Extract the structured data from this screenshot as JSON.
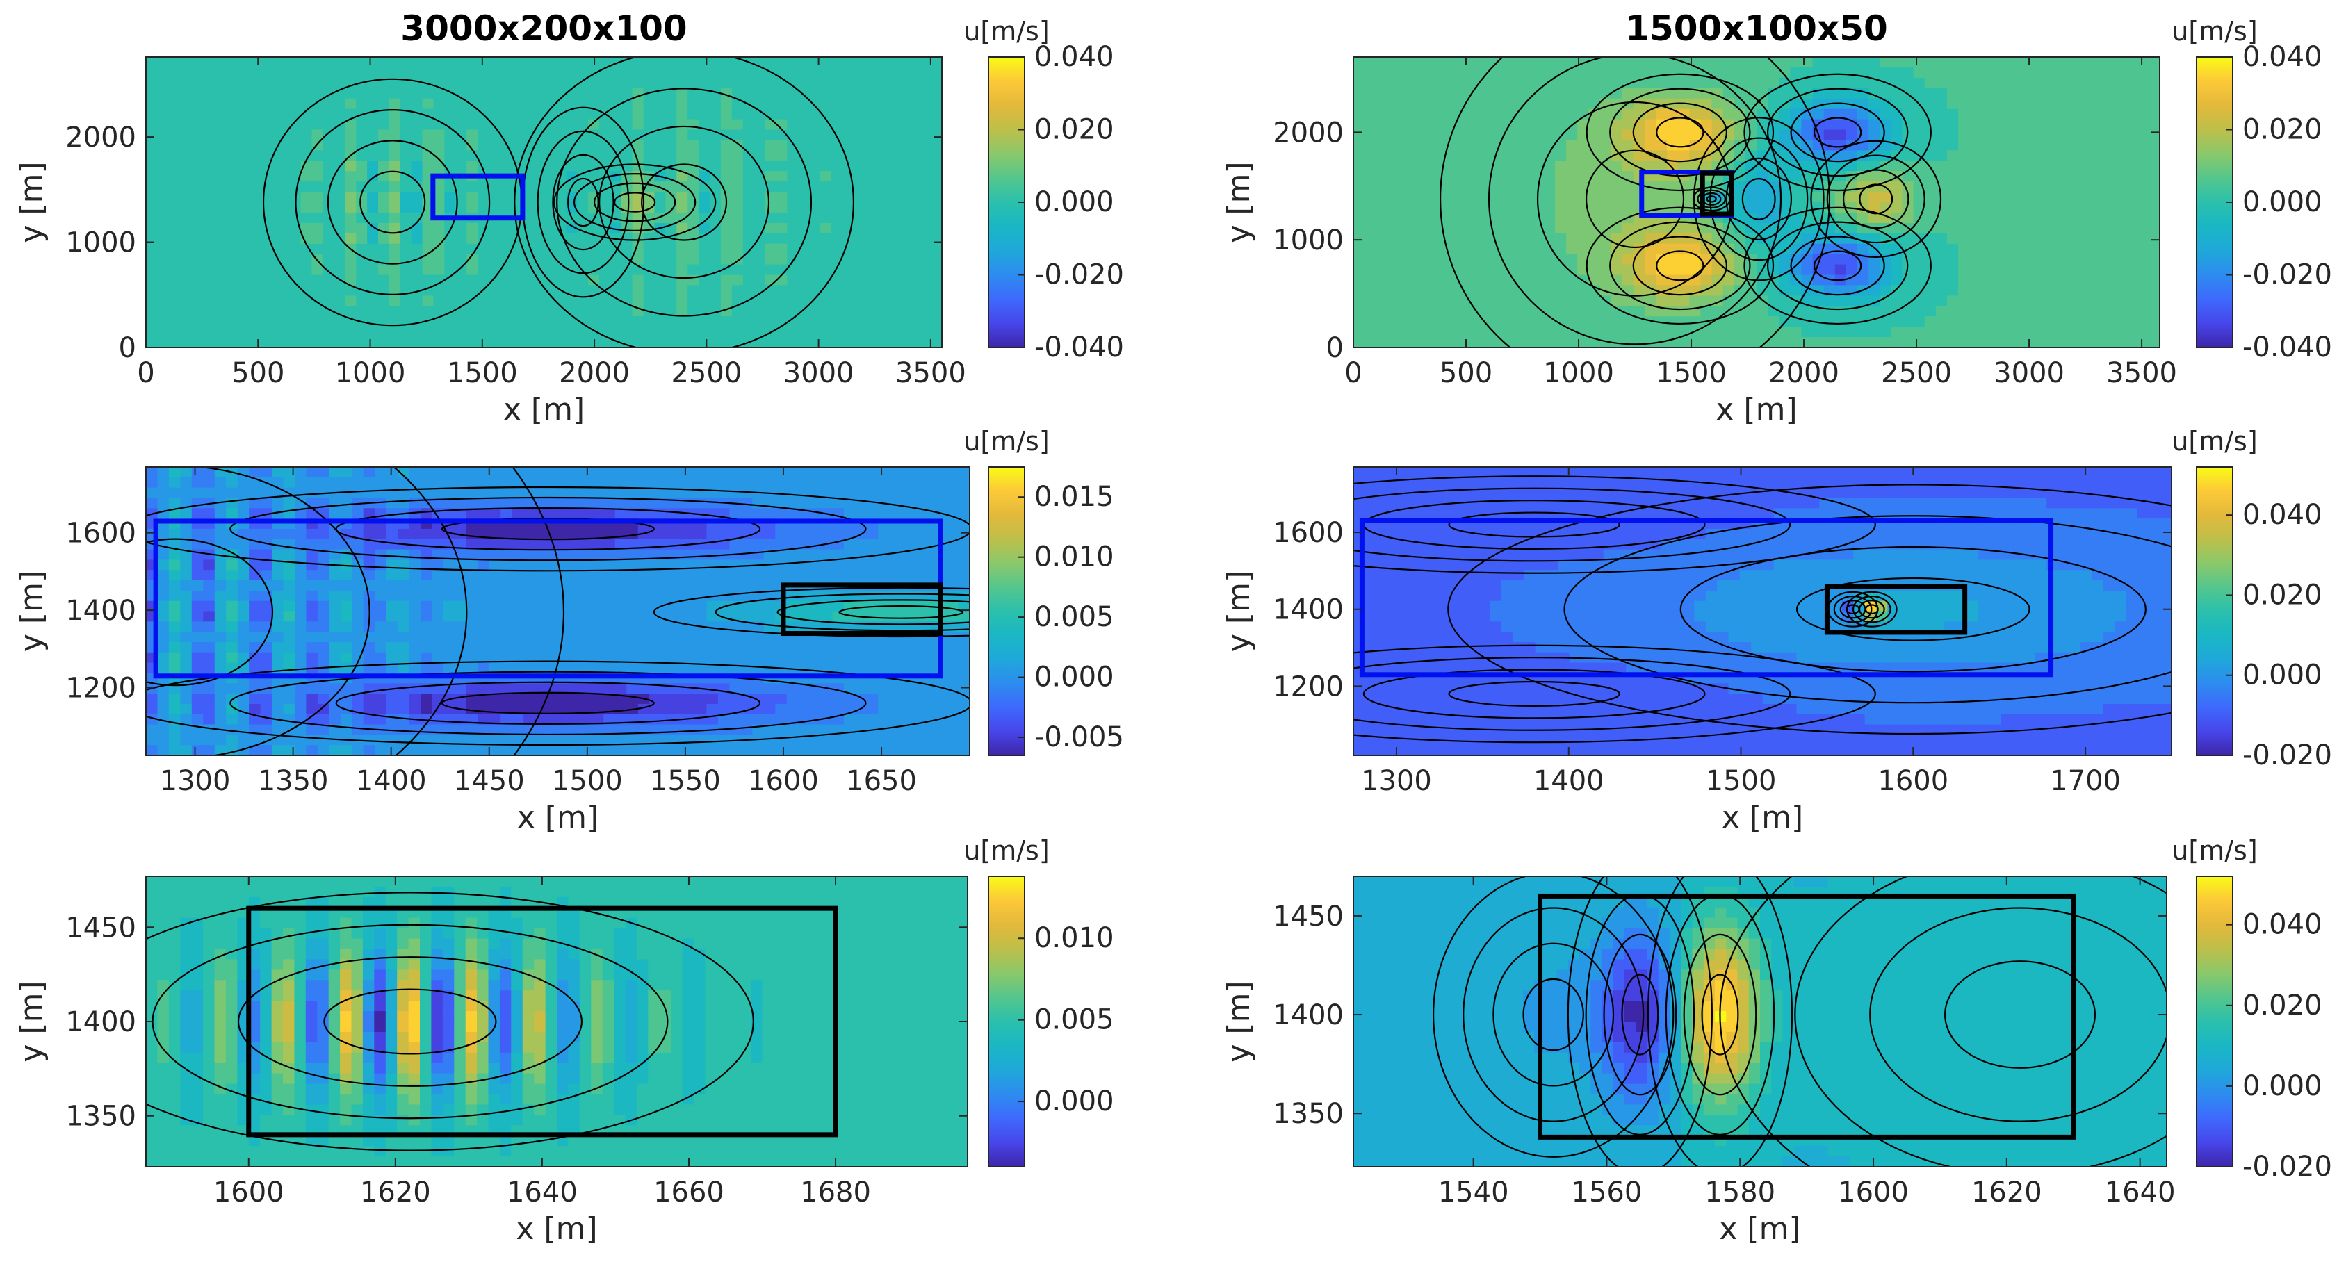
{
  "figure": {
    "cmap": [
      "#3e26a8",
      "#4746eb",
      "#3e69fd",
      "#2d8cef",
      "#1fa8d9",
      "#1ab7c4",
      "#2bc0ac",
      "#54c68d",
      "#8bc86a",
      "#bdbf4a",
      "#e3b93b",
      "#fcc938",
      "#f9fb15"
    ],
    "colors": {
      "blue_box": "#0010ee",
      "black_box": "#000000",
      "contour": "#000000",
      "frame": "#262626",
      "background": "#ffffff"
    }
  },
  "chart_data": [
    {
      "id": "p11",
      "type": "contour",
      "title": "3000x200x100",
      "xlabel": "x [m]",
      "ylabel": "y [m]",
      "xlim": [
        0,
        3550
      ],
      "ylim": [
        0,
        2760
      ],
      "xticks": [
        0,
        500,
        1000,
        1500,
        2000,
        2500,
        3000,
        3500
      ],
      "yticks": [
        0,
        1000,
        2000
      ],
      "xtick_labels": [
        "0",
        "500",
        "1000",
        "1500",
        "2000",
        "2500",
        "3000",
        "3500"
      ],
      "ytick_labels": [
        "0",
        "1000",
        "2000"
      ],
      "colorbar": {
        "label": "u[m/s]",
        "range": [
          -0.04,
          0.04
        ],
        "ticks": [
          0.04,
          0.02,
          0,
          -0.02,
          -0.04
        ],
        "tick_labels": [
          "0.040",
          "0.020",
          "0.000",
          "-0.020",
          "-0.040"
        ]
      },
      "boxes": [
        {
          "color": "blue",
          "x": [
            1280,
            1680
          ],
          "y": [
            1230,
            1630
          ]
        }
      ],
      "field": {
        "base": 0.002,
        "model": "scattered",
        "bumps": [
          {
            "x": 1100,
            "y": 1380,
            "sx": 320,
            "sy": 650,
            "a": 0.014,
            "kx": 0.035,
            "ky": 0.02
          },
          {
            "x": 2400,
            "y": 1380,
            "sx": 420,
            "sy": 800,
            "a": 0.01,
            "kx": 0.03,
            "ky": 0.025
          },
          {
            "x": 2180,
            "y": 1380,
            "sx": 200,
            "sy": 200,
            "a": 0.009,
            "kx": 0,
            "ky": 0
          },
          {
            "x": 1950,
            "y": 1380,
            "sx": 150,
            "sy": 500,
            "a": -0.006,
            "kx": 0,
            "ky": 0
          }
        ]
      }
    },
    {
      "id": "p12",
      "type": "contour",
      "title": "1500x100x50",
      "xlabel": "x [m]",
      "ylabel": "y [m]",
      "xlim": [
        0,
        3580
      ],
      "ylim": [
        0,
        2700
      ],
      "xticks": [
        0,
        500,
        1000,
        1500,
        2000,
        2500,
        3000,
        3500
      ],
      "yticks": [
        0,
        1000,
        2000
      ],
      "xtick_labels": [
        "0",
        "500",
        "1000",
        "1500",
        "2000",
        "2500",
        "3000",
        "3500"
      ],
      "ytick_labels": [
        "0",
        "1000",
        "2000"
      ],
      "colorbar": {
        "label": "u[m/s]",
        "range": [
          -0.04,
          0.04
        ],
        "ticks": [
          0.04,
          0.02,
          0,
          -0.02,
          -0.04
        ],
        "tick_labels": [
          "0.040",
          "0.020",
          "0.000",
          "-0.020",
          "-0.040"
        ]
      },
      "boxes": [
        {
          "color": "blue",
          "x": [
            1280,
            1680
          ],
          "y": [
            1230,
            1630
          ]
        },
        {
          "color": "black",
          "x": [
            1550,
            1680
          ],
          "y": [
            1240,
            1620
          ]
        }
      ],
      "field": {
        "base": 0.003,
        "model": "lobes",
        "bumps": [
          {
            "x": 1450,
            "y": 2000,
            "sx": 230,
            "sy": 300,
            "a": 0.028
          },
          {
            "x": 1450,
            "y": 760,
            "sx": 230,
            "sy": 300,
            "a": 0.028
          },
          {
            "x": 2150,
            "y": 2000,
            "sx": 230,
            "sy": 300,
            "a": -0.036
          },
          {
            "x": 2150,
            "y": 760,
            "sx": 230,
            "sy": 300,
            "a": -0.036
          },
          {
            "x": 1800,
            "y": 1380,
            "sx": 160,
            "sy": 420,
            "a": -0.018
          },
          {
            "x": 2320,
            "y": 1380,
            "sx": 160,
            "sy": 300,
            "a": 0.02
          },
          {
            "x": 1250,
            "y": 1380,
            "sx": 480,
            "sy": 1000,
            "a": 0.01
          },
          {
            "x": 1590,
            "y": 1380,
            "sx": 45,
            "sy": 60,
            "a": -0.02
          }
        ]
      }
    },
    {
      "id": "p21",
      "type": "contour",
      "title": "",
      "xlabel": "x [m]",
      "ylabel": "y [m]",
      "xlim": [
        1275,
        1695
      ],
      "ylim": [
        1025,
        1770
      ],
      "xticks": [
        1300,
        1350,
        1400,
        1450,
        1500,
        1550,
        1600,
        1650
      ],
      "yticks": [
        1200,
        1400,
        1600
      ],
      "xtick_labels": [
        "1300",
        "1350",
        "1400",
        "1450",
        "1500",
        "1550",
        "1600",
        "1650"
      ],
      "ytick_labels": [
        "1200",
        "1400",
        "1600"
      ],
      "colorbar": {
        "label": "u[m/s]",
        "range": [
          -0.0065,
          0.0175
        ],
        "ticks": [
          0.015,
          0.01,
          0.005,
          0,
          -0.005
        ],
        "tick_labels": [
          "0.015",
          "0.010",
          "0.005",
          "0.000",
          "-0.005"
        ]
      },
      "boxes": [
        {
          "color": "blue",
          "x": [
            1280,
            1680
          ],
          "y": [
            1230,
            1630
          ]
        },
        {
          "color": "black",
          "x": [
            1600,
            1680
          ],
          "y": [
            1340,
            1465
          ]
        }
      ],
      "field": {
        "base": 0.0005,
        "model": "wakes",
        "bumps": [
          {
            "x": 1480,
            "y": 1610,
            "sx": 120,
            "sy": 60,
            "a": -0.0075,
            "kx": 0,
            "ky": 0
          },
          {
            "x": 1480,
            "y": 1160,
            "sx": 120,
            "sy": 60,
            "a": -0.0075,
            "kx": 0,
            "ky": 0
          },
          {
            "x": 1660,
            "y": 1395,
            "sx": 70,
            "sy": 35,
            "a": 0.006,
            "kx": 0,
            "ky": 0
          },
          {
            "x": 1290,
            "y": 1395,
            "sx": 110,
            "sy": 420,
            "a": 0.006,
            "kx": 0.22,
            "ky": 0.05
          }
        ]
      }
    },
    {
      "id": "p22",
      "type": "contour",
      "title": "",
      "xlabel": "x [m]",
      "ylabel": "y [m]",
      "xlim": [
        1275,
        1750
      ],
      "ylim": [
        1020,
        1770
      ],
      "xticks": [
        1300,
        1400,
        1500,
        1600,
        1700
      ],
      "yticks": [
        1200,
        1400,
        1600
      ],
      "xtick_labels": [
        "1300",
        "1400",
        "1500",
        "1600",
        "1700"
      ],
      "ytick_labels": [
        "1200",
        "1400",
        "1600"
      ],
      "colorbar": {
        "label": "u[m/s]",
        "range": [
          -0.02,
          0.052
        ],
        "ticks": [
          0.04,
          0.02,
          0,
          -0.02
        ],
        "tick_labels": [
          "0.040",
          "0.020",
          "0.000",
          "-0.020"
        ]
      },
      "boxes": [
        {
          "color": "blue",
          "x": [
            1280,
            1680
          ],
          "y": [
            1230,
            1630
          ]
        },
        {
          "color": "black",
          "x": [
            1550,
            1630
          ],
          "y": [
            1340,
            1460
          ]
        }
      ],
      "field": {
        "base": -0.008,
        "model": "smooth",
        "bumps": [
          {
            "x": 1600,
            "y": 1400,
            "sx": 150,
            "sy": 180,
            "a": 0.012
          },
          {
            "x": 1380,
            "y": 1620,
            "sx": 110,
            "sy": 70,
            "a": -0.003
          },
          {
            "x": 1380,
            "y": 1180,
            "sx": 110,
            "sy": 70,
            "a": -0.003
          },
          {
            "x": 1565,
            "y": 1400,
            "sx": 8,
            "sy": 25,
            "a": -0.02
          },
          {
            "x": 1576,
            "y": 1400,
            "sx": 8,
            "sy": 25,
            "a": 0.05
          }
        ]
      }
    },
    {
      "id": "p31",
      "type": "contour",
      "title": "",
      "xlabel": "x [m]",
      "ylabel": "y [m]",
      "xlim": [
        1586,
        1698
      ],
      "ylim": [
        1323,
        1477
      ],
      "xticks": [
        1600,
        1620,
        1640,
        1660,
        1680
      ],
      "yticks": [
        1350,
        1400,
        1450
      ],
      "xtick_labels": [
        "1600",
        "1620",
        "1640",
        "1660",
        "1680"
      ],
      "ytick_labels": [
        "1350",
        "1400",
        "1450"
      ],
      "colorbar": {
        "label": "u[m/s]",
        "range": [
          -0.004,
          0.0138
        ],
        "ticks": [
          0.01,
          0.005,
          0
        ],
        "tick_labels": [
          "0.010",
          "0.005",
          "0.000"
        ]
      },
      "boxes": [
        {
          "color": "black",
          "x": [
            1600,
            1680
          ],
          "y": [
            1340,
            1460
          ]
        }
      ],
      "field": {
        "base": 0.0045,
        "model": "ripples",
        "bumps": [
          {
            "x": 1622,
            "y": 1400,
            "sx": 26,
            "sy": 38,
            "a": 0.0085,
            "kx": 0.735,
            "ky": 0
          }
        ]
      }
    },
    {
      "id": "p32",
      "type": "contour",
      "title": "",
      "xlabel": "x [m]",
      "ylabel": "y [m]",
      "xlim": [
        1522,
        1644
      ],
      "ylim": [
        1323,
        1470
      ],
      "xticks": [
        1540,
        1560,
        1580,
        1600,
        1620,
        1640
      ],
      "yticks": [
        1350,
        1400,
        1450
      ],
      "xtick_labels": [
        "1540",
        "1560",
        "1580",
        "1600",
        "1620",
        "1640"
      ],
      "ytick_labels": [
        "1350",
        "1400",
        "1450"
      ],
      "colorbar": {
        "label": "u[m/s]",
        "range": [
          -0.02,
          0.052
        ],
        "ticks": [
          0.04,
          0.02,
          0,
          -0.02
        ],
        "tick_labels": [
          "0.040",
          "0.020",
          "0.000",
          "-0.020"
        ]
      },
      "boxes": [
        {
          "color": "black",
          "x": [
            1550,
            1630
          ],
          "y": [
            1338,
            1460
          ]
        }
      ],
      "field": {
        "base": 0.008,
        "model": "smooth",
        "bumps": [
          {
            "x": 1565,
            "y": 1400,
            "sx": 6,
            "sy": 45,
            "a": -0.026
          },
          {
            "x": 1577,
            "y": 1400,
            "sx": 6,
            "sy": 45,
            "a": 0.042
          },
          {
            "x": 1552,
            "y": 1400,
            "sx": 10,
            "sy": 40,
            "a": -0.006
          },
          {
            "x": 1622,
            "y": 1400,
            "sx": 25,
            "sy": 60,
            "a": 0.004
          }
        ]
      }
    }
  ]
}
